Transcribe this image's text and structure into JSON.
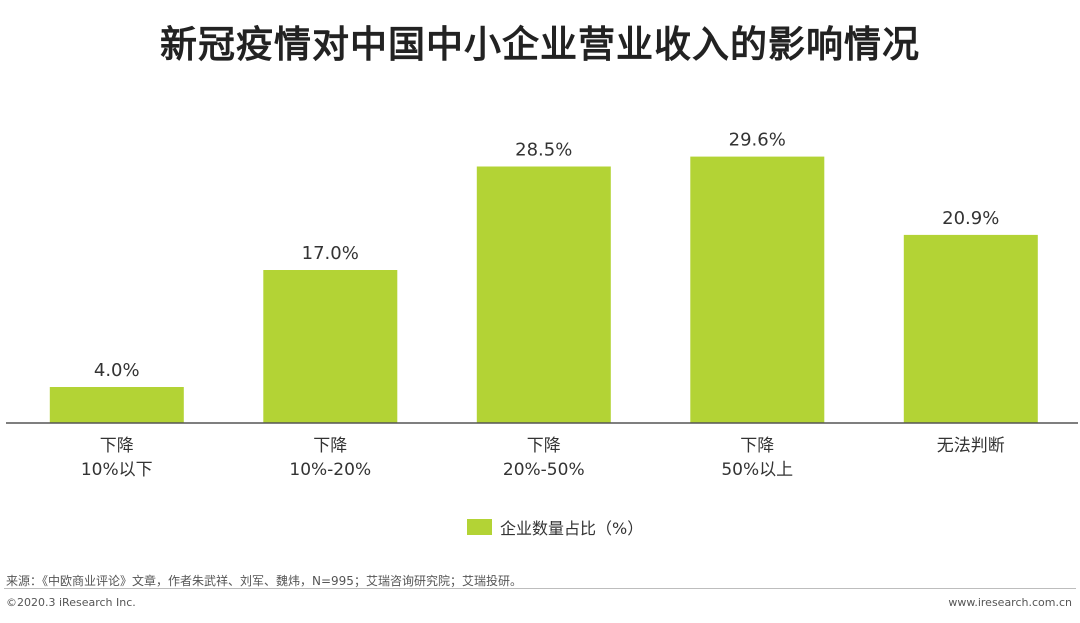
{
  "header": {
    "title": "新冠疫情对中国中小企业营业收入的影响情况"
  },
  "legend": {
    "label": "企业数量占比（%）"
  },
  "source_note": "来源：《中欧商业评论》文章，作者朱武祥、刘军、魏炜，N=995；艾瑞咨询研究院；艾瑞投研。",
  "footer": {
    "copyright": "©2020.3 iResearch Inc.",
    "website": "www.iresearch.com.cn"
  },
  "colors": {
    "bar": "#b3d335",
    "axis": "#555555"
  },
  "chart_data": {
    "type": "bar",
    "title": "新冠疫情对中国中小企业营业收入的影响情况",
    "categories": [
      [
        "下降",
        "10%以下"
      ],
      [
        "下降",
        "10%-20%"
      ],
      [
        "下降",
        "20%-50%"
      ],
      [
        "下降",
        "50%以上"
      ],
      [
        "无法判断"
      ]
    ],
    "series": [
      {
        "name": "企业数量占比（%）",
        "values": [
          4.0,
          17.0,
          28.5,
          29.6,
          20.9
        ],
        "labels": [
          "4.0%",
          "17.0%",
          "28.5%",
          "29.6%",
          "20.9%"
        ]
      }
    ],
    "ylim": [
      0,
      32
    ],
    "grid": false,
    "legend_position": "bottom"
  }
}
